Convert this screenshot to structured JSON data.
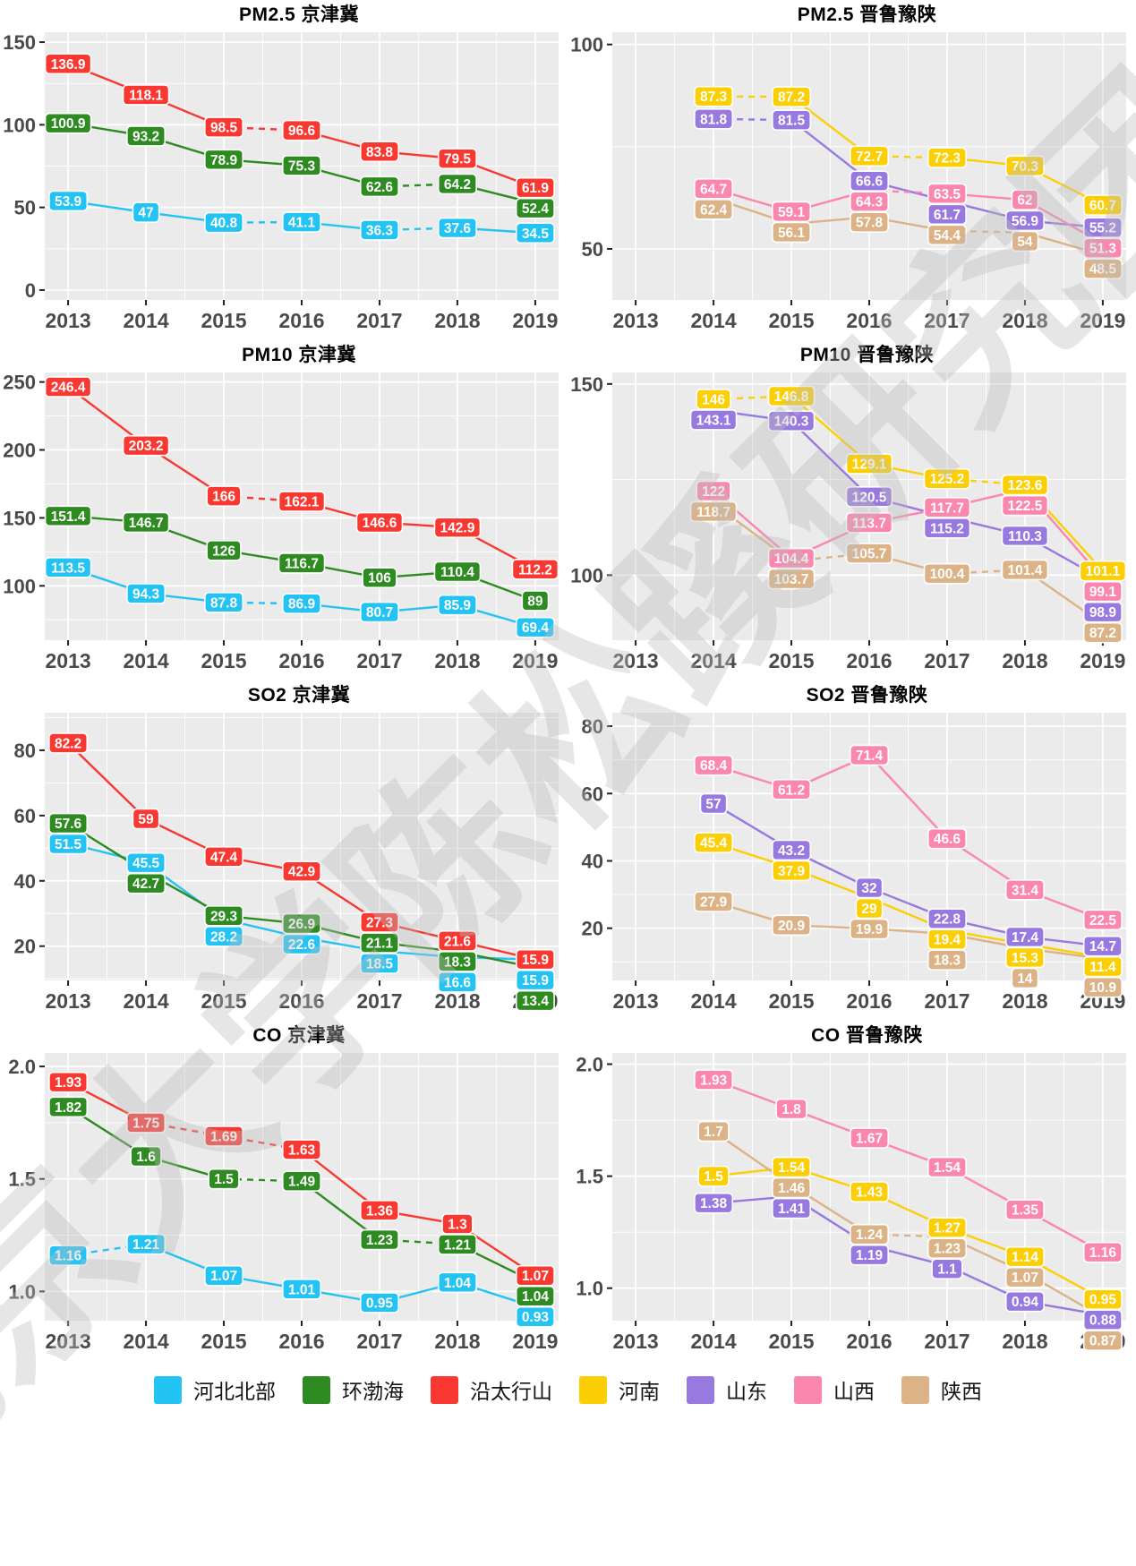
{
  "watermark": {
    "text": "北京大学陈松蹊研究团队"
  },
  "legend": {
    "items": [
      {
        "label": "河北北部",
        "color": "#23c3f4"
      },
      {
        "label": "环渤海",
        "color": "#2e8b22"
      },
      {
        "label": "沿太行山",
        "color": "#f93832"
      },
      {
        "label": "河南",
        "color": "#fccf05"
      },
      {
        "label": "山东",
        "color": "#9879e0"
      },
      {
        "label": "山西",
        "color": "#fb86ae"
      },
      {
        "label": "陕西",
        "color": "#dcb287"
      }
    ]
  },
  "chart_data": [
    {
      "type": "line",
      "title": "PM2.5 京津冀",
      "categories": [
        2013,
        2014,
        2015,
        2016,
        2017,
        2018,
        2019
      ],
      "ylim": [
        -6,
        156
      ],
      "yticks": [
        0,
        50,
        100,
        150
      ],
      "ytick_labels": [
        "0",
        "50",
        "100",
        "150"
      ],
      "series": [
        {
          "name": "河北北部",
          "color": "#23c3f4",
          "values": [
            53.9,
            47,
            40.8,
            41.1,
            36.3,
            37.6,
            34.5
          ],
          "dashed": [
            [
              2,
              3
            ],
            [
              4,
              5
            ]
          ]
        },
        {
          "name": "环渤海",
          "color": "#2e8b22",
          "values": [
            100.9,
            93.2,
            78.9,
            75.3,
            62.6,
            64.2,
            52.4
          ],
          "dashed": [
            [
              4,
              5
            ]
          ]
        },
        {
          "name": "沿太行山",
          "color": "#f93832",
          "values": [
            136.9,
            118.1,
            98.5,
            96.6,
            83.8,
            79.5,
            61.9
          ],
          "dashed": [
            [
              2,
              3
            ]
          ]
        }
      ]
    },
    {
      "type": "line",
      "title": "PM2.5 晋鲁豫陕",
      "categories": [
        2013,
        2014,
        2015,
        2016,
        2017,
        2018,
        2019
      ],
      "ylim": [
        37.5,
        103
      ],
      "yticks": [
        50,
        100
      ],
      "ytick_labels": [
        "50",
        "100"
      ],
      "series": [
        {
          "name": "河南",
          "color": "#fccf05",
          "values": [
            null,
            87.3,
            87.2,
            72.7,
            72.3,
            70.3,
            60.7
          ],
          "dashed": [
            [
              1,
              2
            ],
            [
              3,
              4
            ]
          ]
        },
        {
          "name": "山东",
          "color": "#9879e0",
          "values": [
            null,
            81.8,
            81.5,
            66.6,
            61.7,
            56.9,
            55.2
          ],
          "dashed": [
            [
              1,
              2
            ]
          ]
        },
        {
          "name": "山西",
          "color": "#fb86ae",
          "values": [
            null,
            64.7,
            59.1,
            64.3,
            63.5,
            62,
            51.3
          ],
          "dashed": [
            [
              3,
              4
            ]
          ]
        },
        {
          "name": "陕西",
          "color": "#dcb287",
          "values": [
            null,
            62.4,
            56.1,
            57.8,
            54.4,
            54,
            48.5
          ],
          "dashed": [
            [
              4,
              5
            ]
          ]
        }
      ]
    },
    {
      "type": "line",
      "title": "PM10 京津冀",
      "categories": [
        2013,
        2014,
        2015,
        2016,
        2017,
        2018,
        2019
      ],
      "ylim": [
        60,
        257
      ],
      "yticks": [
        100,
        150,
        200,
        250
      ],
      "ytick_labels": [
        "100",
        "150",
        "200",
        "250"
      ],
      "series": [
        {
          "name": "河北北部",
          "color": "#23c3f4",
          "values": [
            113.5,
            94.3,
            87.8,
            86.9,
            80.7,
            85.9,
            69.4
          ],
          "dashed": [
            [
              2,
              3
            ]
          ]
        },
        {
          "name": "环渤海",
          "color": "#2e8b22",
          "values": [
            151.4,
            146.7,
            126,
            116.7,
            106,
            110.4,
            89
          ],
          "dashed": []
        },
        {
          "name": "沿太行山",
          "color": "#f93832",
          "values": [
            246.4,
            203.2,
            166,
            162.1,
            146.6,
            142.9,
            112.2
          ],
          "dashed": [
            [
              2,
              3
            ]
          ]
        }
      ]
    },
    {
      "type": "line",
      "title": "PM10 晋鲁豫陕",
      "categories": [
        2013,
        2014,
        2015,
        2016,
        2017,
        2018,
        2019
      ],
      "ylim": [
        83,
        153
      ],
      "yticks": [
        100,
        150
      ],
      "ytick_labels": [
        "100",
        "150"
      ],
      "series": [
        {
          "name": "河南",
          "color": "#fccf05",
          "values": [
            null,
            146,
            146.8,
            129.1,
            125.2,
            123.6,
            101.1
          ],
          "dashed": [
            [
              1,
              2
            ],
            [
              4,
              5
            ]
          ]
        },
        {
          "name": "山东",
          "color": "#9879e0",
          "values": [
            null,
            143.1,
            140.3,
            120.5,
            115.2,
            110.3,
            98.9
          ],
          "dashed": []
        },
        {
          "name": "山西",
          "color": "#fb86ae",
          "values": [
            null,
            122,
            104.4,
            113.7,
            117.7,
            122.5,
            99.1
          ],
          "dashed": []
        },
        {
          "name": "陕西",
          "color": "#dcb287",
          "values": [
            null,
            118.7,
            103.7,
            105.7,
            100.4,
            101.4,
            87.2
          ],
          "dashed": [
            [
              2,
              3
            ],
            [
              4,
              5
            ]
          ]
        }
      ]
    },
    {
      "type": "line",
      "title": "SO2 京津冀",
      "categories": [
        2013,
        2014,
        2015,
        2016,
        2017,
        2018,
        2019
      ],
      "ylim": [
        9.5,
        91.5
      ],
      "yticks": [
        20,
        40,
        60,
        80
      ],
      "ytick_labels": [
        "20",
        "40",
        "60",
        "80"
      ],
      "series": [
        {
          "name": "河北北部",
          "color": "#23c3f4",
          "values": [
            51.5,
            45.5,
            28.2,
            22.6,
            18.5,
            16.6,
            15.9
          ],
          "dashed": []
        },
        {
          "name": "环渤海",
          "color": "#2e8b22",
          "values": [
            57.6,
            42.7,
            29.3,
            26.9,
            21.1,
            18.3,
            13.4
          ],
          "dashed": []
        },
        {
          "name": "沿太行山",
          "color": "#f93832",
          "values": [
            82.2,
            59,
            47.4,
            42.9,
            27.3,
            21.6,
            15.9
          ],
          "dashed": []
        }
      ]
    },
    {
      "type": "line",
      "title": "SO2 晋鲁豫陕",
      "categories": [
        2013,
        2014,
        2015,
        2016,
        2017,
        2018,
        2019
      ],
      "ylim": [
        4.5,
        84
      ],
      "yticks": [
        20,
        40,
        60,
        80
      ],
      "ytick_labels": [
        "20",
        "40",
        "60",
        "80"
      ],
      "series": [
        {
          "name": "河南",
          "color": "#fccf05",
          "values": [
            null,
            45.4,
            37.9,
            29,
            19.4,
            15.3,
            11.4
          ],
          "dashed": []
        },
        {
          "name": "山东",
          "color": "#9879e0",
          "values": [
            null,
            57,
            43.2,
            32,
            22.8,
            17.4,
            14.7
          ],
          "dashed": []
        },
        {
          "name": "山西",
          "color": "#fb86ae",
          "values": [
            null,
            68.4,
            61.2,
            71.4,
            46.6,
            31.4,
            22.5
          ],
          "dashed": []
        },
        {
          "name": "陕西",
          "color": "#dcb287",
          "values": [
            null,
            27.9,
            20.9,
            19.9,
            18.3,
            14,
            10.9
          ],
          "dashed": []
        }
      ]
    },
    {
      "type": "line",
      "title": "CO 京津冀",
      "categories": [
        2013,
        2014,
        2015,
        2016,
        2017,
        2018,
        2019
      ],
      "ylim": [
        0.87,
        2.06
      ],
      "yticks": [
        1.0,
        1.5,
        2.0
      ],
      "ytick_labels": [
        "1.0",
        "1.5",
        "2.0"
      ],
      "series": [
        {
          "name": "河北北部",
          "color": "#23c3f4",
          "values": [
            1.16,
            1.21,
            1.07,
            1.01,
            0.95,
            1.04,
            0.93
          ],
          "dashed": [
            [
              0,
              1
            ]
          ]
        },
        {
          "name": "环渤海",
          "color": "#2e8b22",
          "values": [
            1.82,
            1.6,
            1.5,
            1.49,
            1.23,
            1.21,
            1.04
          ],
          "dashed": [
            [
              2,
              3
            ],
            [
              4,
              5
            ]
          ]
        },
        {
          "name": "沿太行山",
          "color": "#f93832",
          "values": [
            1.93,
            1.75,
            1.69,
            1.63,
            1.36,
            1.3,
            1.07
          ],
          "dashed": [
            [
              1,
              2
            ],
            [
              2,
              3
            ]
          ]
        }
      ]
    },
    {
      "type": "line",
      "title": "CO 晋鲁豫陕",
      "categories": [
        2013,
        2014,
        2015,
        2016,
        2017,
        2018,
        2019
      ],
      "ylim": [
        0.855,
        2.05
      ],
      "yticks": [
        1.0,
        1.5,
        2.0
      ],
      "ytick_labels": [
        "1.0",
        "1.5",
        "2.0"
      ],
      "series": [
        {
          "name": "河南",
          "color": "#fccf05",
          "values": [
            null,
            1.5,
            1.54,
            1.43,
            1.27,
            1.14,
            0.95
          ],
          "dashed": []
        },
        {
          "name": "山东",
          "color": "#9879e0",
          "values": [
            null,
            1.38,
            1.41,
            1.19,
            1.1,
            0.94,
            0.88
          ],
          "dashed": []
        },
        {
          "name": "山西",
          "color": "#fb86ae",
          "values": [
            null,
            1.93,
            1.8,
            1.67,
            1.54,
            1.35,
            1.16
          ],
          "dashed": []
        },
        {
          "name": "陕西",
          "color": "#dcb287",
          "values": [
            null,
            1.7,
            1.46,
            1.24,
            1.23,
            1.07,
            0.87
          ],
          "dashed": [
            [
              3,
              4
            ]
          ]
        }
      ]
    }
  ],
  "plot_style": {
    "panel_background": "#ebebeb",
    "grid_color": "#ffffff",
    "axis_text_color": "#4a4a4a",
    "x_domain": [
      2012.7,
      2019.3
    ]
  }
}
